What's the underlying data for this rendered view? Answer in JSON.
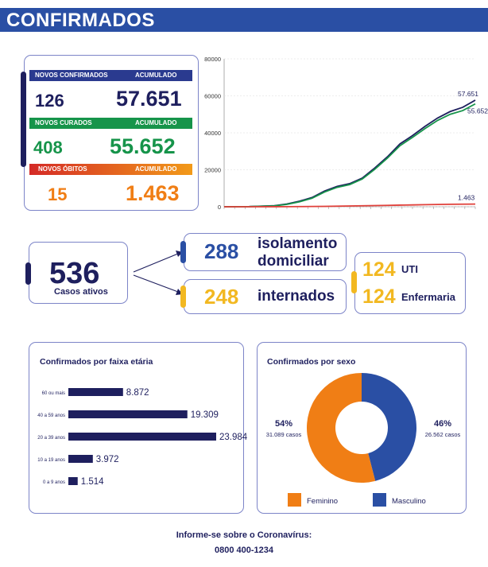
{
  "header": {
    "title": "CONFIRMADOS"
  },
  "summary": {
    "confirmados": {
      "label": "NOVOS CONFIRMADOS",
      "acc_label": "ACUMULADO",
      "new": "126",
      "acc": "57.651",
      "color": "#2a3a8f"
    },
    "curados": {
      "label": "NOVOS CURADOS",
      "acc_label": "ACUMULADO",
      "new": "408",
      "acc": "55.652",
      "color": "#16944a"
    },
    "obitos": {
      "label": "NOVOS ÓBITOS",
      "acc_label": "ACUMULADO",
      "new": "15",
      "acc": "1.463",
      "color": "#f07e15"
    }
  },
  "flow": {
    "ativos": {
      "value": "536",
      "label": "Casos ativos"
    },
    "isolamento": {
      "value": "288",
      "label1": "isolamento",
      "label2": "domiciliar"
    },
    "internados": {
      "value": "248",
      "label": "internados"
    },
    "uti": {
      "value": "124",
      "label": "UTI"
    },
    "enfermaria": {
      "value": "124",
      "label": "Enfermaria"
    }
  },
  "footer": {
    "line1": "Informe-se sobre o Coronavírus:",
    "line2": "0800 400-1234"
  },
  "colors": {
    "navy": "#1e1f5e",
    "blue": "#2a4fa4",
    "green": "#16944a",
    "orange": "#f07e15",
    "yellow": "#f2b821",
    "red": "#e0403a"
  },
  "chart_data": [
    {
      "type": "line",
      "ylim": [
        0,
        80000
      ],
      "yticks": [
        "0",
        "20000",
        "40000",
        "60000",
        "80000"
      ],
      "x": [
        0,
        10,
        20,
        25,
        30,
        35,
        40,
        45,
        50,
        55,
        60,
        65,
        70,
        75,
        80,
        85,
        90,
        95,
        100
      ],
      "series": [
        {
          "color": "#1e1f5e",
          "end_label": "57.651",
          "values": [
            0,
            100,
            600,
            1500,
            3000,
            5000,
            8500,
            11000,
            12500,
            15500,
            21000,
            27000,
            34000,
            38500,
            43500,
            48000,
            51500,
            53800,
            57651
          ]
        },
        {
          "color": "#16944a",
          "end_label": "55.652",
          "values": [
            0,
            80,
            500,
            1300,
            2700,
            4600,
            8000,
            10500,
            12000,
            15000,
            20300,
            26300,
            33000,
            37500,
            42300,
            46700,
            50000,
            52000,
            55652
          ]
        },
        {
          "color": "#e0403a",
          "end_label": "1.463",
          "values": [
            0,
            10,
            30,
            60,
            100,
            160,
            230,
            320,
            420,
            530,
            640,
            760,
            880,
            1000,
            1120,
            1230,
            1330,
            1400,
            1463
          ]
        }
      ]
    },
    {
      "type": "bar",
      "title": "Confirmados por faixa etária",
      "categories": [
        "60 ou mais",
        "40 a 59 anos",
        "20 a 39 anos",
        "10 a 19 anos",
        "0 a 9 anos"
      ],
      "values": [
        8872,
        19309,
        23984,
        3972,
        1514
      ],
      "labels": [
        "8.872",
        "19.309",
        "23.984",
        "3.972",
        "1.514"
      ],
      "color": "#1e1f5e"
    },
    {
      "type": "pie",
      "title": "Confirmados por sexo",
      "slices": [
        {
          "name": "Feminino",
          "value": 54,
          "pct": "54%",
          "count": "31.089 casos",
          "color": "#f07e15"
        },
        {
          "name": "Masculino",
          "value": 46,
          "pct": "46%",
          "count": "26.562 casos",
          "color": "#2a4fa4"
        }
      ]
    }
  ]
}
